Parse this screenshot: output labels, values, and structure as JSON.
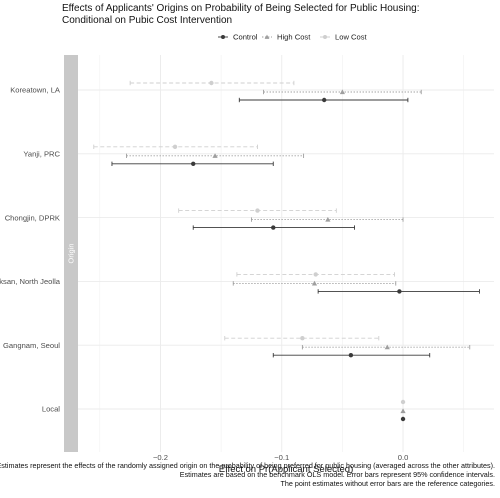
{
  "chart_data": {
    "type": "dot-and-whisker",
    "title_lines": [
      "Effects of Applicants' Origins on Probability of Being Selected for Public Housing:",
      "Conditional on Pubic Cost Intervention"
    ],
    "xlabel": "Effect on Pr(Applicant Selected)",
    "strip_label": "Origin",
    "xlim": [
      -0.268,
      0.075
    ],
    "x_ticks": [
      -0.2,
      -0.1,
      0.0
    ],
    "x_tick_labels": [
      "−0.2",
      "−0.1",
      "0.0"
    ],
    "categories": [
      "Koreatown, LA",
      "Yanji, PRC",
      "Chongjin, DPRK",
      "Iksan, North Jeolla",
      "Gangnam, Seoul",
      "Local"
    ],
    "legend_position": "top",
    "grid": true,
    "series": [
      {
        "name": "Control",
        "color": "#3a3a3a",
        "marker": "circle",
        "line": "solid",
        "points": [
          {
            "category": "Koreatown, LA",
            "estimate": -0.065,
            "ci": [
              -0.135,
              0.004
            ]
          },
          {
            "category": "Yanji, PRC",
            "estimate": -0.173,
            "ci": [
              -0.24,
              -0.107
            ]
          },
          {
            "category": "Chongjin, DPRK",
            "estimate": -0.107,
            "ci": [
              -0.173,
              -0.04
            ]
          },
          {
            "category": "Iksan, North Jeolla",
            "estimate": -0.003,
            "ci": [
              -0.07,
              0.063
            ]
          },
          {
            "category": "Gangnam, Seoul",
            "estimate": -0.043,
            "ci": [
              -0.107,
              0.022
            ]
          },
          {
            "category": "Local",
            "estimate": 0.0,
            "ci": null
          }
        ]
      },
      {
        "name": "High Cost",
        "color": "#9e9e9e",
        "marker": "triangle",
        "line": "dotted",
        "points": [
          {
            "category": "Koreatown, LA",
            "estimate": -0.05,
            "ci": [
              -0.115,
              0.015
            ]
          },
          {
            "category": "Yanji, PRC",
            "estimate": -0.155,
            "ci": [
              -0.228,
              -0.082
            ]
          },
          {
            "category": "Chongjin, DPRK",
            "estimate": -0.062,
            "ci": [
              -0.125,
              0.0
            ]
          },
          {
            "category": "Iksan, North Jeolla",
            "estimate": -0.073,
            "ci": [
              -0.14,
              -0.006
            ]
          },
          {
            "category": "Gangnam, Seoul",
            "estimate": -0.013,
            "ci": [
              -0.083,
              0.055
            ]
          },
          {
            "category": "Local",
            "estimate": 0.0,
            "ci": null
          }
        ]
      },
      {
        "name": "Low Cost",
        "color": "#cfcfcf",
        "marker": "circle",
        "line": "dashed",
        "points": [
          {
            "category": "Koreatown, LA",
            "estimate": -0.158,
            "ci": [
              -0.225,
              -0.09
            ]
          },
          {
            "category": "Yanji, PRC",
            "estimate": -0.188,
            "ci": [
              -0.255,
              -0.12
            ]
          },
          {
            "category": "Chongjin, DPRK",
            "estimate": -0.12,
            "ci": [
              -0.185,
              -0.055
            ]
          },
          {
            "category": "Iksan, North Jeolla",
            "estimate": -0.072,
            "ci": [
              -0.137,
              -0.007
            ]
          },
          {
            "category": "Gangnam, Seoul",
            "estimate": -0.083,
            "ci": [
              -0.147,
              -0.02
            ]
          },
          {
            "category": "Local",
            "estimate": 0.0,
            "ci": null
          }
        ]
      }
    ]
  },
  "footnote_lines": [
    "Estimates represent the effects of the randomly assigned origin on the probability of being preferred for public housing (averaged across the other attributes).",
    "Estimates are based on the benchmark OLS model. Error bars represent 95% confidence intervals.",
    "The point estimates without error bars are the reference categories."
  ]
}
